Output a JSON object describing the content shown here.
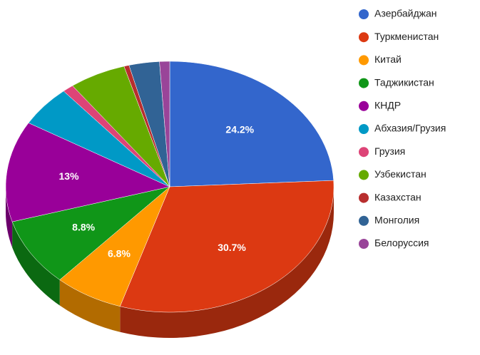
{
  "chart_data": {
    "type": "pie3d",
    "categories": [
      "Азербайджан",
      "Туркменистан",
      "Китай",
      "Таджикистан",
      "КНДР",
      "Абхазия/Грузия",
      "Грузия",
      "Узбекистан",
      "Казахстан",
      "Монголия",
      "Белоруссия"
    ],
    "values": [
      24.2,
      30.7,
      6.8,
      8.8,
      13,
      5.3,
      1.1,
      5.6,
      0.5,
      3.0,
      1.0
    ],
    "value_labels": [
      "24.2%",
      "30.7%",
      "6.8%",
      "8.8%",
      "13%",
      null,
      null,
      null,
      null,
      null,
      null
    ],
    "colors": [
      "#3366cc",
      "#dc3912",
      "#ff9900",
      "#109618",
      "#990099",
      "#0099c6",
      "#dd4477",
      "#66aa00",
      "#b82e2e",
      "#316395",
      "#994499"
    ],
    "legend": "right"
  }
}
